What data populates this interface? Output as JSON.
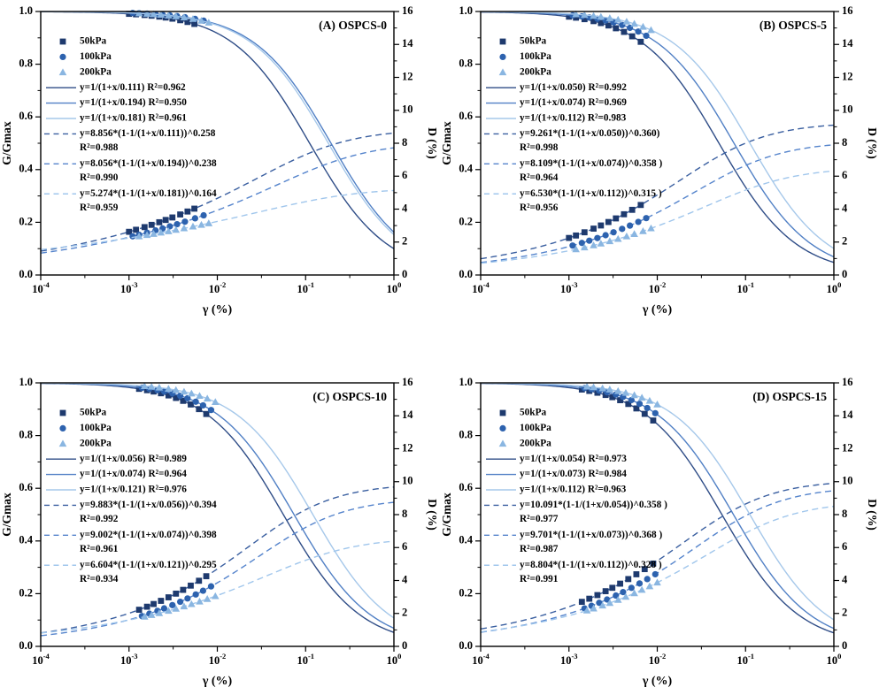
{
  "figure": {
    "background": "#ffffff",
    "axis_color": "#000000",
    "text_color": "#000000"
  },
  "axes": {
    "xlabel": "γ (%)",
    "ylabel_left": "G/Gmax",
    "ylabel_right": "D (%)",
    "x_scale": "log",
    "x_tick_exponents": [
      -4,
      -3,
      -2,
      -1,
      0
    ],
    "xlim": [
      0.0001,
      1
    ],
    "y_left": {
      "min": 0.0,
      "max": 1.0,
      "major": 0.2,
      "minor": 0.1,
      "tick_labels": [
        "0.0",
        "0.2",
        "0.4",
        "0.6",
        "0.8",
        "1.0"
      ]
    },
    "y_right": {
      "min": 0,
      "max": 16,
      "major": 2,
      "minor": 1,
      "tick_labels": [
        "0",
        "2",
        "4",
        "6",
        "8",
        "10",
        "12",
        "14",
        "16"
      ]
    },
    "grid": false
  },
  "pressures": [
    {
      "label": "50kPa",
      "marker": "square",
      "marker_color": "#1e3a6e",
      "line_color": "#2f4d87",
      "dash_color": "#3a5fa0"
    },
    {
      "label": "100kPa",
      "marker": "circle",
      "marker_color": "#2d62ae",
      "line_color": "#5180c5",
      "dash_color": "#5584cc"
    },
    {
      "label": "200kPa",
      "marker": "triangle",
      "marker_color": "#8ab6e1",
      "line_color": "#a6c8ea",
      "dash_color": "#a0c6ec"
    }
  ],
  "chart_data": [
    {
      "type": "line+scatter",
      "panel": "A",
      "title": "(A) OSPCS-0",
      "series": [
        {
          "pressure": "50kPa",
          "gmax_fit": {
            "equation": "y=1/(1+x/0.111)",
            "ref": 0.111,
            "r2": 0.962,
            "legend": "y=1/(1+x/0.111) R²=0.962"
          },
          "damping_fit": {
            "equation": "y=8.856*(1-1/(1+x/0.111))^0.258",
            "amp": 8.856,
            "ref": 0.111,
            "exp": 0.258,
            "r2": 0.988,
            "legend": "y=8.856*(1-1/(1+x/0.111))^0.258",
            "legend_r2": "R²=0.988"
          },
          "scatter_x": [
            0.001,
            0.0012,
            0.0015,
            0.0018,
            0.0022,
            0.0026,
            0.0031,
            0.0038,
            0.0046,
            0.0055
          ]
        },
        {
          "pressure": "100kPa",
          "gmax_fit": {
            "equation": "y=1/(1+x/0.194)",
            "ref": 0.194,
            "r2": 0.95,
            "legend": "y=1/(1+x/0.194) R²=0.950"
          },
          "damping_fit": {
            "equation": "y=8.056*(1-1/(1+x/0.194))^0.238",
            "amp": 8.056,
            "ref": 0.194,
            "exp": 0.238,
            "r2": 0.99,
            "legend": "y=8.056*(1-1/(1+x/0.194))^0.238",
            "legend_r2": "R²=0.990"
          },
          "scatter_x": [
            0.0011,
            0.0013,
            0.0016,
            0.002,
            0.0024,
            0.0029,
            0.0035,
            0.0043,
            0.0056,
            0.007
          ]
        },
        {
          "pressure": "200kPa",
          "gmax_fit": {
            "equation": "y=1/(1+x/0.181)",
            "ref": 0.181,
            "r2": 0.961,
            "legend": "y=1/(1+x/0.181) R²=0.961"
          },
          "damping_fit": {
            "equation": "y=5.274*(1-1/(1+x/0.181))^0.164",
            "amp": 5.274,
            "ref": 0.181,
            "exp": 0.164,
            "r2": 0.959,
            "legend": "y=5.274*(1-1/(1+x/0.181))^0.164",
            "legend_r2": "R²=0.959"
          },
          "scatter_x": [
            0.0013,
            0.0016,
            0.0019,
            0.0023,
            0.0028,
            0.0034,
            0.0042,
            0.0053,
            0.0066,
            0.008
          ]
        }
      ]
    },
    {
      "type": "line+scatter",
      "panel": "B",
      "title": "(B) OSPCS-5",
      "series": [
        {
          "pressure": "50kPa",
          "gmax_fit": {
            "equation": "y=1/(1+x/0.050)",
            "ref": 0.05,
            "r2": 0.992,
            "legend": "y=1/(1+x/0.050) R²=0.992"
          },
          "damping_fit": {
            "equation": "y=9.261*(1-1/(1+x/0.050))^0.360",
            "amp": 9.261,
            "ref": 0.05,
            "exp": 0.36,
            "r2": 0.998,
            "legend": "y=9.261*(1-1/(1+x/0.050))^0.360)",
            "legend_r2": "R²=0.998"
          },
          "scatter_x": [
            0.001,
            0.0012,
            0.0015,
            0.0019,
            0.0023,
            0.0028,
            0.0034,
            0.0042,
            0.0052,
            0.0065
          ]
        },
        {
          "pressure": "100kPa",
          "gmax_fit": {
            "equation": "y=1/(1+x/0.074)",
            "ref": 0.074,
            "r2": 0.969,
            "legend": "y=1/(1+x/0.074) R²=0.969"
          },
          "damping_fit": {
            "equation": "y=8.109*(1-1/(1+x/0.074))^0.358",
            "amp": 8.109,
            "ref": 0.074,
            "exp": 0.358,
            "r2": 0.964,
            "legend": "y=8.109*(1-1/(1+x/0.074))^0.358 )",
            "legend_r2": "R²=0.964"
          },
          "scatter_x": [
            0.0011,
            0.0014,
            0.0017,
            0.0021,
            0.0026,
            0.0032,
            0.004,
            0.0049,
            0.0061,
            0.0075
          ]
        },
        {
          "pressure": "200kPa",
          "gmax_fit": {
            "equation": "y=1/(1+x/0.112)",
            "ref": 0.112,
            "r2": 0.983,
            "legend": "y=1/(1+x/0.112) R²=0.983"
          },
          "damping_fit": {
            "equation": "y=6.530*(1-1/(1+x/0.112))^0.315",
            "amp": 6.53,
            "ref": 0.112,
            "exp": 0.315,
            "r2": 0.956,
            "legend": "y=6.530*(1-1/(1+x/0.112))^0.315 )",
            "legend_r2": "R²=0.956"
          },
          "scatter_x": [
            0.0012,
            0.0015,
            0.0019,
            0.0023,
            0.0029,
            0.0036,
            0.0045,
            0.0055,
            0.0069,
            0.0085
          ]
        }
      ]
    },
    {
      "type": "line+scatter",
      "panel": "C",
      "title": "(C) OSPCS-10",
      "series": [
        {
          "pressure": "50kPa",
          "gmax_fit": {
            "equation": "y=1/(1+x/0.056)",
            "ref": 0.056,
            "r2": 0.989,
            "legend": "y=1/(1+x/0.056) R²=0.989"
          },
          "damping_fit": {
            "equation": "y=9.883*(1-1/(1+x/0.056))^0.394",
            "amp": 9.883,
            "ref": 0.056,
            "exp": 0.394,
            "r2": 0.992,
            "legend": "y=9.883*(1-1/(1+x/0.056))^0.394",
            "legend_r2": "R²=0.992"
          },
          "scatter_x": [
            0.0013,
            0.0016,
            0.0019,
            0.0023,
            0.0028,
            0.0034,
            0.0041,
            0.005,
            0.0062,
            0.0075
          ]
        },
        {
          "pressure": "100kPa",
          "gmax_fit": {
            "equation": "y=1/(1+x/0.074)",
            "ref": 0.074,
            "r2": 0.964,
            "legend": "y=1/(1+x/0.074) R²=0.964"
          },
          "damping_fit": {
            "equation": "y=9.002*(1-1/(1+x/0.074))^0.398",
            "amp": 9.002,
            "ref": 0.074,
            "exp": 0.398,
            "r2": 0.961,
            "legend": "y=9.002*(1-1/(1+x/0.074))^0.398",
            "legend_r2": "R²=0.961"
          },
          "scatter_x": [
            0.0014,
            0.0017,
            0.0021,
            0.0025,
            0.0031,
            0.0038,
            0.0046,
            0.0057,
            0.0069,
            0.0085
          ]
        },
        {
          "pressure": "200kPa",
          "gmax_fit": {
            "equation": "y=1/(1+x/0.121)",
            "ref": 0.121,
            "r2": 0.976,
            "legend": "y=1/(1+x/0.121) R²=0.976"
          },
          "damping_fit": {
            "equation": "y=6.604*(1-1/(1+x/0.121))^0.295",
            "amp": 6.604,
            "ref": 0.121,
            "exp": 0.295,
            "r2": 0.934,
            "legend": "y=6.604*(1-1/(1+x/0.121))^0.295",
            "legend_r2": "R²=0.934"
          },
          "scatter_x": [
            0.0015,
            0.0018,
            0.0022,
            0.0028,
            0.0034,
            0.0042,
            0.0051,
            0.0063,
            0.0077,
            0.0095
          ]
        }
      ]
    },
    {
      "type": "line+scatter",
      "panel": "D",
      "title": "(D) OSPCS-15",
      "series": [
        {
          "pressure": "50kPa",
          "gmax_fit": {
            "equation": "y=1/(1+x/0.054)",
            "ref": 0.054,
            "r2": 0.973,
            "legend": "y=1/(1+x/0.054) R²=0.973"
          },
          "damping_fit": {
            "equation": "y=10.091*(1-1/(1+x/0.054))^0.358",
            "amp": 10.091,
            "ref": 0.054,
            "exp": 0.358,
            "r2": 0.977,
            "legend": "y=10.091*(1-1/(1+x/0.054))^0.358 )",
            "legend_r2": "R²=0.977"
          },
          "scatter_x": [
            0.0014,
            0.0017,
            0.0021,
            0.0026,
            0.0031,
            0.0038,
            0.0047,
            0.0058,
            0.0072,
            0.009
          ]
        },
        {
          "pressure": "100kPa",
          "gmax_fit": {
            "equation": "y=1/(1+x/0.073)",
            "ref": 0.073,
            "r2": 0.984,
            "legend": "y=1/(1+x/0.073) R²=0.984"
          },
          "damping_fit": {
            "equation": "y=9.701*(1-1/(1+x/0.073))^0.368",
            "amp": 9.701,
            "ref": 0.073,
            "exp": 0.368,
            "r2": 0.987,
            "legend": "y=9.701*(1-1/(1+x/0.073))^0.368 )",
            "legend_r2": "R²=0.987"
          },
          "scatter_x": [
            0.0015,
            0.0018,
            0.0022,
            0.0027,
            0.0034,
            0.0041,
            0.0051,
            0.0063,
            0.0077,
            0.0095
          ]
        },
        {
          "pressure": "200kPa",
          "gmax_fit": {
            "equation": "y=1/(1+x/0.112)",
            "ref": 0.112,
            "r2": 0.963,
            "legend": "y=1/(1+x/0.112) R²=0.963"
          },
          "damping_fit": {
            "equation": "y=8.804*(1-1/(1+x/0.112))^0.328",
            "amp": 8.804,
            "ref": 0.112,
            "exp": 0.328,
            "r2": 0.991,
            "legend": "y=8.804*(1-1/(1+x/0.112))^0.328 )",
            "legend_r2": "R²=0.991"
          },
          "scatter_x": [
            0.0016,
            0.0019,
            0.0024,
            0.0029,
            0.0036,
            0.0044,
            0.0055,
            0.0067,
            0.0082,
            0.01
          ]
        }
      ]
    }
  ]
}
